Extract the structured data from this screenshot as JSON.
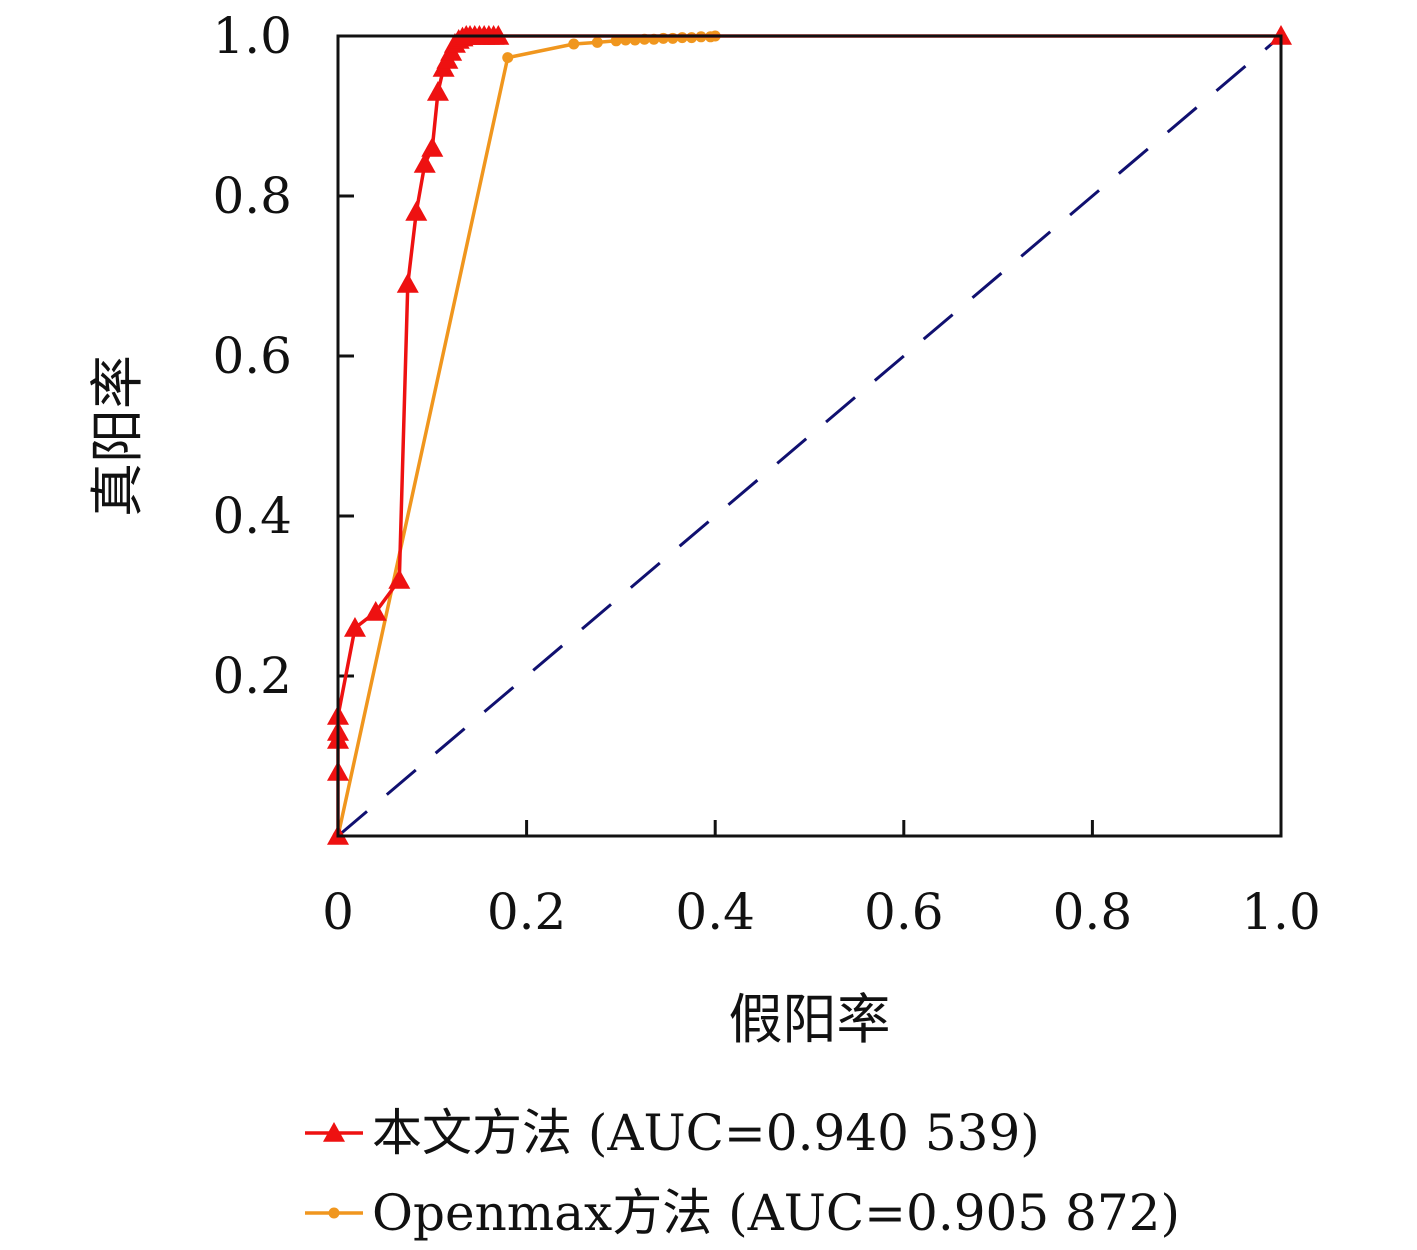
{
  "chart_data": {
    "type": "line",
    "title": "",
    "xlabel": "假阳率",
    "ylabel": "真阳率",
    "xlim": [
      0,
      1
    ],
    "ylim": [
      0,
      1
    ],
    "x_ticks": [
      {
        "value": 0,
        "label": "0"
      },
      {
        "value": 0.2,
        "label": "0.2"
      },
      {
        "value": 0.4,
        "label": "0.4"
      },
      {
        "value": 0.6,
        "label": "0.6"
      },
      {
        "value": 0.8,
        "label": "0.8"
      },
      {
        "value": 1.0,
        "label": "1.0"
      }
    ],
    "y_ticks": [
      {
        "value": 0.2,
        "label": "0.2"
      },
      {
        "value": 0.4,
        "label": "0.4"
      },
      {
        "value": 0.6,
        "label": "0.6"
      },
      {
        "value": 0.8,
        "label": "0.8"
      },
      {
        "value": 1.0,
        "label": "1.0"
      }
    ],
    "grid": false,
    "legend_position": "bottom",
    "series": [
      {
        "name": "本文方法 (AUC=0.940 539)",
        "color": "#ee1111",
        "marker": "triangle",
        "points": [
          [
            0.0,
            0.0
          ],
          [
            0.0,
            0.08
          ],
          [
            0.0,
            0.12
          ],
          [
            0.0,
            0.13
          ],
          [
            0.0,
            0.15
          ],
          [
            0.018,
            0.26
          ],
          [
            0.04,
            0.28
          ],
          [
            0.065,
            0.32
          ],
          [
            0.074,
            0.69
          ],
          [
            0.083,
            0.78
          ],
          [
            0.092,
            0.84
          ],
          [
            0.1,
            0.86
          ],
          [
            0.106,
            0.93
          ],
          [
            0.112,
            0.96
          ],
          [
            0.116,
            0.97
          ],
          [
            0.12,
            0.98
          ],
          [
            0.124,
            0.99
          ],
          [
            0.128,
            0.995
          ],
          [
            0.132,
            0.998
          ],
          [
            0.136,
            1.0
          ],
          [
            0.14,
            1.0
          ],
          [
            0.145,
            1.0
          ],
          [
            0.15,
            1.0
          ],
          [
            0.155,
            1.0
          ],
          [
            0.16,
            1.0
          ],
          [
            0.165,
            1.0
          ],
          [
            0.17,
            1.0
          ],
          [
            1.0,
            1.0
          ]
        ]
      },
      {
        "name": "Openmax方法 (AUC=0.905 872)",
        "color": "#f0961e",
        "marker": "circle",
        "points": [
          [
            0.0,
            0.0
          ],
          [
            0.18,
            0.973
          ],
          [
            0.25,
            0.99
          ],
          [
            0.275,
            0.992
          ],
          [
            0.295,
            0.994
          ],
          [
            0.305,
            0.995
          ],
          [
            0.315,
            0.995
          ],
          [
            0.325,
            0.996
          ],
          [
            0.335,
            0.996
          ],
          [
            0.345,
            0.997
          ],
          [
            0.355,
            0.997
          ],
          [
            0.365,
            0.998
          ],
          [
            0.375,
            0.998
          ],
          [
            0.385,
            0.999
          ],
          [
            0.395,
            0.999
          ],
          [
            0.4,
            1.0
          ]
        ]
      },
      {
        "name": "",
        "color": "#101070",
        "marker": "none",
        "dashed": true,
        "points": [
          [
            0.0,
            0.0
          ],
          [
            1.0,
            1.0
          ]
        ]
      }
    ]
  }
}
